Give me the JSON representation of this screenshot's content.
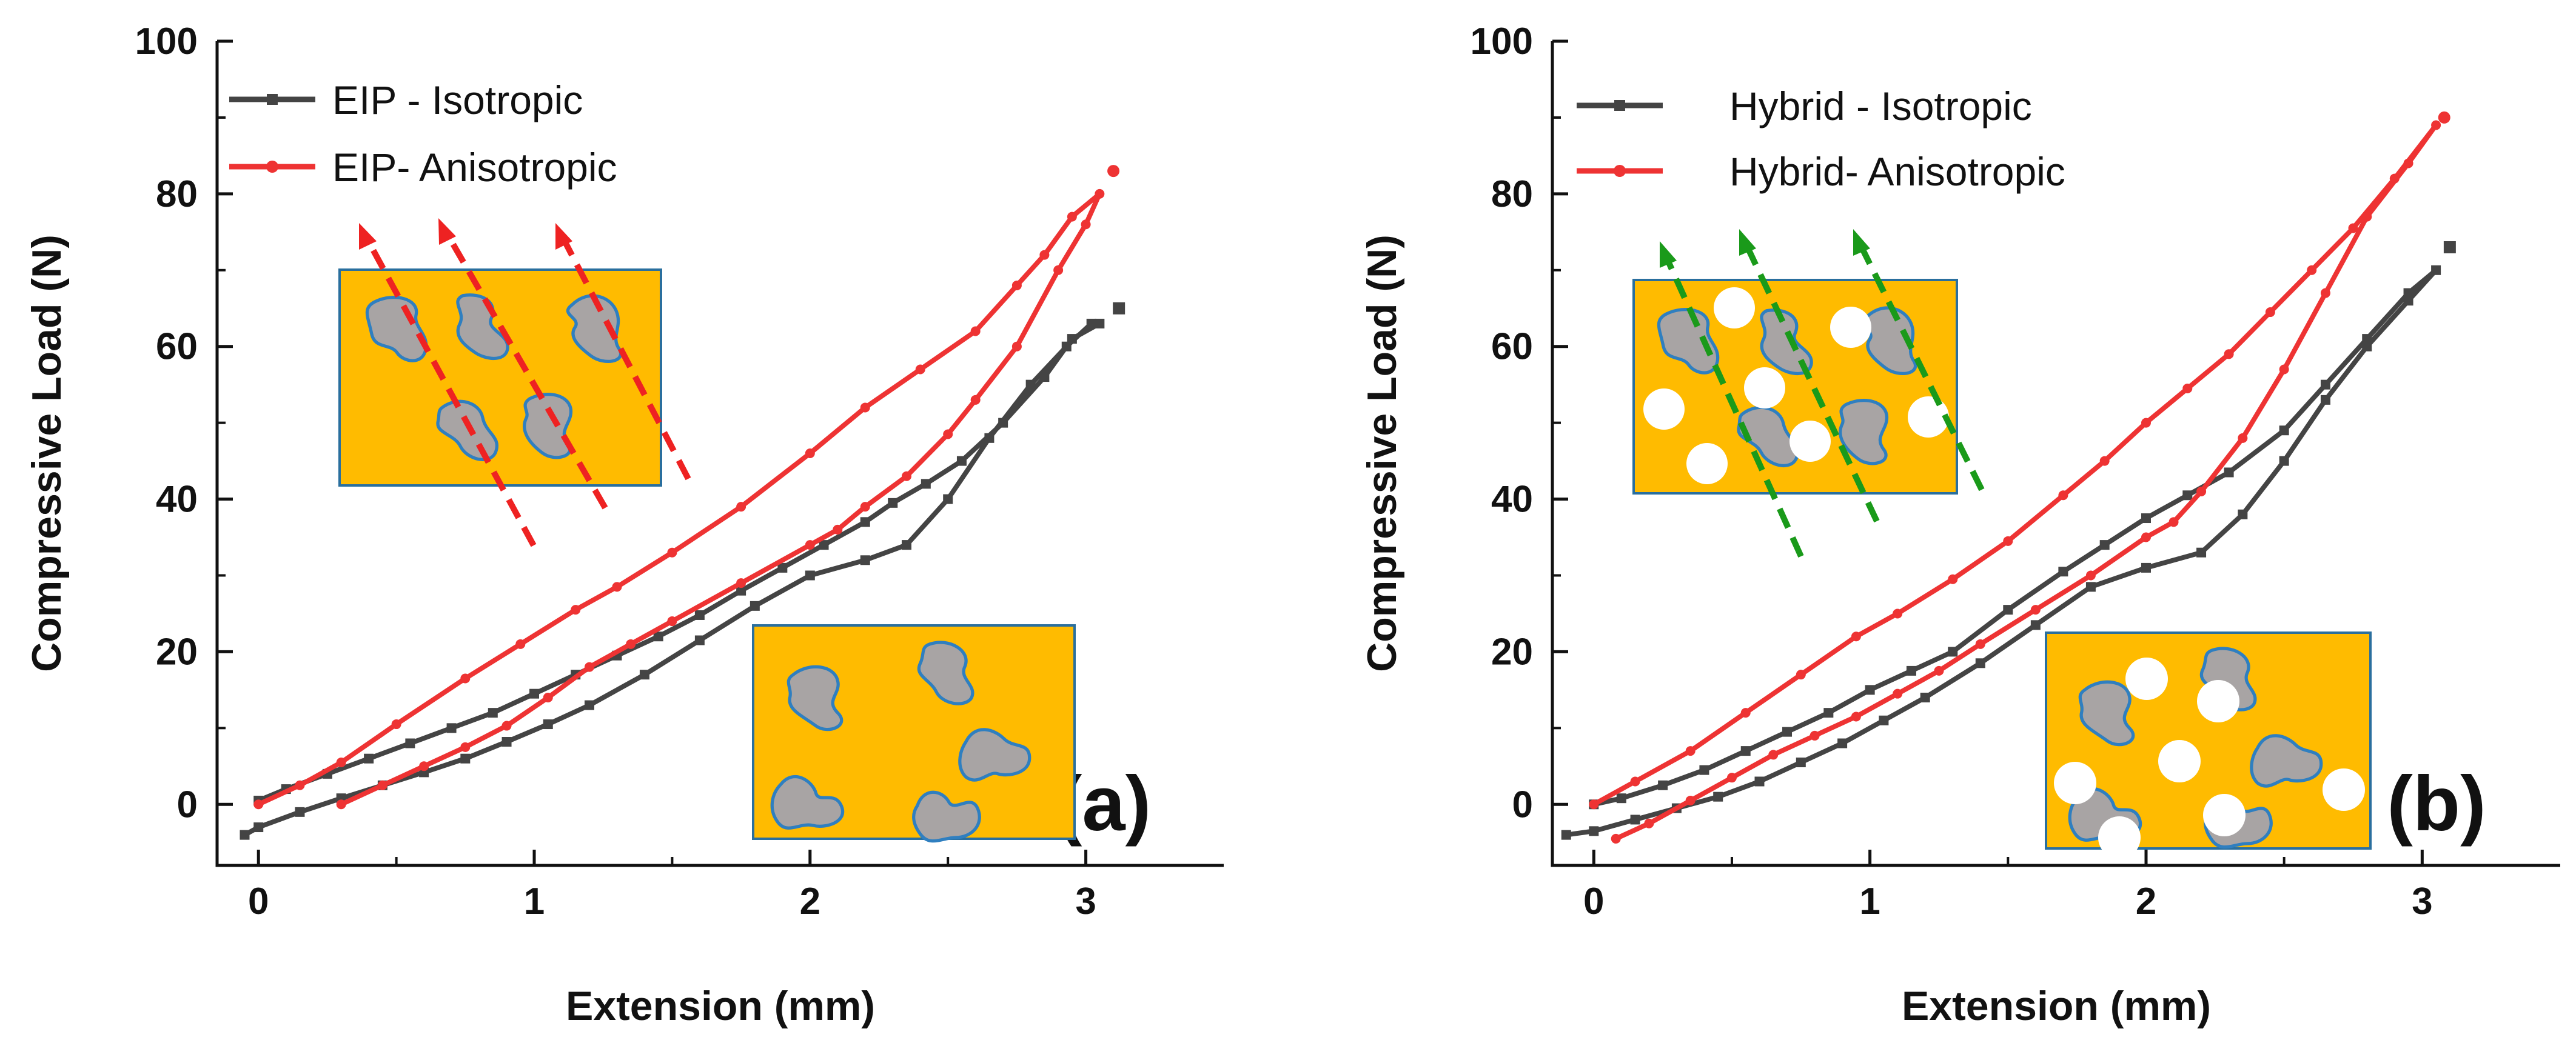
{
  "chart_data": [
    {
      "type": "line",
      "panel_label": "(a)",
      "xlabel": "Extension (mm)",
      "ylabel": "Compressive Load (N)",
      "xlim": [
        -0.15,
        3.5
      ],
      "ylim": [
        -8,
        100
      ],
      "xticks": [
        0,
        1,
        2,
        3
      ],
      "yticks": [
        0,
        20,
        40,
        60,
        80,
        100
      ],
      "legend_position": "top-left",
      "colors": {
        "isotropic": "#444444",
        "anisotropic": "#ee3333",
        "matrix": "#ffbb00",
        "particle": "#a8a4a4",
        "particle_edge": "#2f7fc0",
        "arrow": "#ee2222"
      },
      "insets": [
        {
          "name": "inset-aligned",
          "particles": "aligned",
          "arrows": 3
        },
        {
          "name": "inset-random",
          "particles": "random",
          "arrows": 0
        }
      ],
      "series": [
        {
          "name": "EIP - Isotropic",
          "color": "#444444",
          "marker": "square",
          "x": [
            -0.05,
            0.0,
            0.15,
            0.3,
            0.45,
            0.6,
            0.75,
            0.9,
            1.05,
            1.2,
            1.4,
            1.6,
            1.8,
            2.0,
            2.2,
            2.35,
            2.5,
            2.65,
            2.8,
            2.93,
            3.02,
            3.05,
            2.95,
            2.85,
            2.7,
            2.55,
            2.42,
            2.3,
            2.2,
            2.05,
            1.9,
            1.75,
            1.6,
            1.45,
            1.3,
            1.15,
            1.0,
            0.85,
            0.7,
            0.55,
            0.4,
            0.25,
            0.1,
            0.0
          ],
          "y": [
            -4,
            -3,
            -1,
            0.8,
            2.5,
            4.2,
            6,
            8.2,
            10.5,
            13,
            17,
            21.5,
            26,
            30,
            32,
            34,
            40,
            48,
            55,
            60,
            63,
            63,
            61,
            56,
            50,
            45,
            42,
            39.5,
            37,
            34,
            31,
            28,
            24.8,
            22,
            19.5,
            17,
            14.5,
            12,
            10,
            8,
            6,
            4,
            2,
            0.5
          ]
        },
        {
          "name": "EIP- Anisotropic",
          "color": "#ee3333",
          "marker": "circle",
          "x": [
            0.3,
            0.45,
            0.6,
            0.75,
            0.9,
            1.05,
            1.2,
            1.35,
            1.5,
            1.75,
            2.0,
            2.1,
            2.2,
            2.35,
            2.5,
            2.6,
            2.75,
            2.9,
            3.0,
            3.05,
            2.95,
            2.85,
            2.75,
            2.6,
            2.4,
            2.2,
            2.0,
            1.75,
            1.5,
            1.3,
            1.15,
            0.95,
            0.75,
            0.5,
            0.3,
            0.15,
            0.0
          ],
          "y": [
            0,
            2.5,
            5,
            7.5,
            10.3,
            14,
            18,
            21,
            24,
            29,
            34,
            36,
            39,
            43,
            48.5,
            53,
            60,
            70,
            76,
            80,
            77,
            72,
            68,
            62,
            57,
            52,
            46,
            39,
            33,
            28.5,
            25.5,
            21,
            16.5,
            10.5,
            5.5,
            2.5,
            0
          ]
        }
      ],
      "extra_points": [
        {
          "series": "EIP - Isotropic",
          "x": 3.12,
          "y": 65
        },
        {
          "series": "EIP- Anisotropic",
          "x": 3.1,
          "y": 83
        }
      ]
    },
    {
      "type": "line",
      "panel_label": "(b)",
      "xlabel": "Extension (mm)",
      "ylabel": "Compressive Load (N)",
      "xlim": [
        -0.15,
        3.5
      ],
      "ylim": [
        -8,
        100
      ],
      "xticks": [
        0,
        1,
        2,
        3
      ],
      "yticks": [
        0,
        20,
        40,
        60,
        80,
        100
      ],
      "legend_position": "top-left",
      "colors": {
        "isotropic": "#444444",
        "anisotropic": "#ee3333",
        "matrix": "#ffbb00",
        "particle": "#a8a4a4",
        "particle_edge": "#2f7fc0",
        "filler": "#ffffff",
        "arrow": "#1a9a1a"
      },
      "insets": [
        {
          "name": "inset-aligned",
          "particles": "aligned",
          "arrows": 3,
          "fillers": true
        },
        {
          "name": "inset-random",
          "particles": "random",
          "arrows": 0,
          "fillers": true
        }
      ],
      "series": [
        {
          "name": "Hybrid - Isotropic",
          "color": "#444444",
          "marker": "square",
          "x": [
            -0.1,
            0.0,
            0.15,
            0.3,
            0.45,
            0.6,
            0.75,
            0.9,
            1.05,
            1.2,
            1.4,
            1.6,
            1.8,
            2.0,
            2.2,
            2.35,
            2.5,
            2.65,
            2.8,
            2.95,
            3.05,
            2.95,
            2.8,
            2.65,
            2.5,
            2.3,
            2.15,
            2.0,
            1.85,
            1.7,
            1.5,
            1.3,
            1.15,
            1.0,
            0.85,
            0.7,
            0.55,
            0.4,
            0.25,
            0.1,
            0.0
          ],
          "y": [
            -4,
            -3.5,
            -2,
            -0.5,
            1,
            3,
            5.5,
            8,
            11,
            14,
            18.5,
            23.5,
            28.5,
            31,
            33,
            38,
            45,
            53,
            60,
            66,
            70,
            67,
            61,
            55,
            49,
            43.5,
            40.5,
            37.5,
            34,
            30.5,
            25.5,
            20,
            17.5,
            15,
            12,
            9.5,
            7,
            4.5,
            2.5,
            0.8,
            0
          ]
        },
        {
          "name": "Hybrid- Anisotropic",
          "color": "#ee3333",
          "marker": "circle",
          "x": [
            0.08,
            0.2,
            0.35,
            0.5,
            0.65,
            0.8,
            0.95,
            1.1,
            1.25,
            1.4,
            1.6,
            1.8,
            2.0,
            2.1,
            2.2,
            2.35,
            2.5,
            2.65,
            2.8,
            2.95,
            3.05,
            2.9,
            2.75,
            2.6,
            2.45,
            2.3,
            2.15,
            2.0,
            1.85,
            1.7,
            1.5,
            1.3,
            1.1,
            0.95,
            0.75,
            0.55,
            0.35,
            0.15,
            0.0
          ],
          "y": [
            -4.5,
            -2.5,
            0.5,
            3.5,
            6.5,
            9,
            11.5,
            14.5,
            17.5,
            21,
            25.5,
            30,
            35,
            37,
            41,
            48,
            57,
            67,
            77,
            84,
            89,
            82,
            75.5,
            70,
            64.5,
            59,
            54.5,
            50,
            45,
            40.5,
            34.5,
            29.5,
            25,
            22,
            17,
            12,
            7,
            3,
            0
          ]
        }
      ],
      "extra_points": [
        {
          "series": "Hybrid - Isotropic",
          "x": 3.1,
          "y": 73
        },
        {
          "series": "Hybrid- Anisotropic",
          "x": 3.08,
          "y": 90
        }
      ]
    }
  ]
}
